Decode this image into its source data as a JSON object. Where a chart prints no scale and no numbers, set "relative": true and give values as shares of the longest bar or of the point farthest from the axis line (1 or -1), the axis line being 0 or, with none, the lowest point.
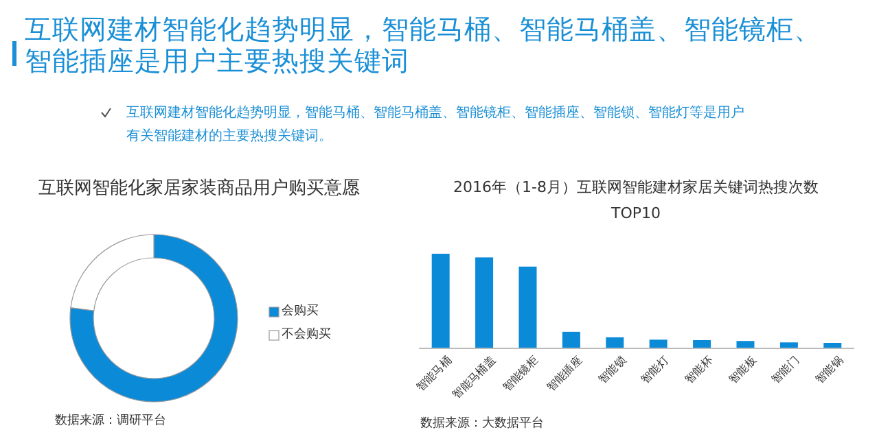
{
  "chart_data": [
    {
      "type": "other",
      "title": "互联网建材智能化趋势明显，智能马桶、智能马桶盖、智能镜柜、智能插座是用户主要热搜关键词",
      "annotations": [
        "互联网建材智能化趋势明显，智能马桶、智能马桶盖、智能镜柜、智能插座、智能锁、智能灯等是用户有关智能建材的主要热搜关键词。"
      ]
    },
    {
      "type": "donut",
      "title": "互联网智能化家居家装商品用户购买意愿",
      "categories": [
        "会购买",
        "不会购买"
      ],
      "values": [
        77,
        23
      ],
      "colors": [
        "#0b8ad8",
        "#ffffff"
      ],
      "legend": "right",
      "annotations": [
        "数据来源：调研平台"
      ]
    },
    {
      "type": "bar",
      "title": "2016年（1-8月）互联网智能建材家居关键词热搜次数TOP10",
      "categories": [
        "智能马桶",
        "智能马桶盖",
        "智能镜柜",
        "智能插座",
        "智能锁",
        "智能灯",
        "智能杯",
        "智能板",
        "智能门",
        "智能锅"
      ],
      "values": [
        1,
        0.961,
        0.864,
        0.175,
        0.117,
        0.092,
        0.087,
        0.078,
        0.063,
        0.058
      ],
      "color": "#0b8ad8",
      "relative": true,
      "annotations": [
        "数据来源：大数据平台"
      ]
    }
  ]
}
